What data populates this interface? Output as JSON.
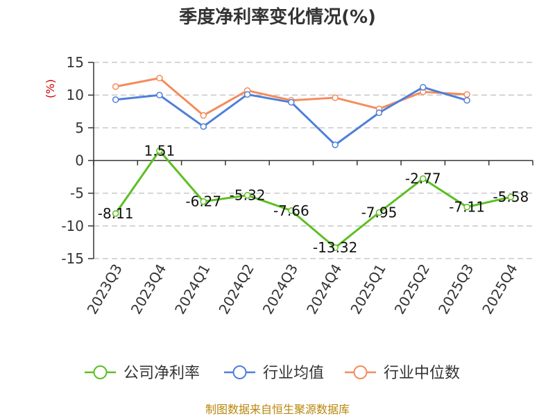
{
  "chart_data": {
    "type": "line",
    "title": "季度净利率变化情况(%)",
    "ylabel": "(%)",
    "categories": [
      "2023Q3",
      "2023Q4",
      "2024Q1",
      "2024Q2",
      "2024Q3",
      "2024Q4",
      "2025Q1",
      "2025Q2",
      "2025Q3",
      "2025Q4"
    ],
    "yticks": [
      15,
      10,
      5,
      0,
      -5,
      -10,
      -15
    ],
    "ylim": [
      -15,
      15
    ],
    "grid": true,
    "legend_position": "bottom",
    "series": [
      {
        "name": "公司净利率",
        "color": "#5bbf21",
        "values": [
          -8.11,
          1.51,
          -6.27,
          -5.32,
          -7.66,
          -13.32,
          -7.95,
          -2.77,
          -7.11,
          -5.58
        ],
        "labels": [
          "-8.11",
          "1.51",
          "-6.27",
          "-5.32",
          "-7.66",
          "-13.32",
          "-7.95",
          "-2.77",
          "-7.11",
          "-5.58"
        ]
      },
      {
        "name": "行业均值",
        "color": "#4f7fd9",
        "values": [
          9.3,
          10.0,
          5.2,
          10.1,
          8.9,
          2.4,
          7.3,
          11.2,
          9.2,
          null
        ]
      },
      {
        "name": "行业中位数",
        "color": "#f58b5a",
        "values": [
          11.3,
          12.6,
          6.9,
          10.7,
          9.2,
          9.6,
          7.9,
          10.5,
          10.1,
          null
        ]
      }
    ]
  },
  "source": "制图数据来自恒生聚源数据库"
}
